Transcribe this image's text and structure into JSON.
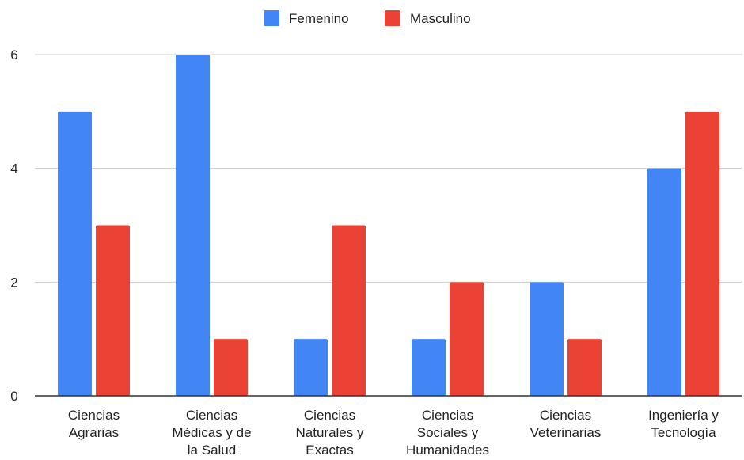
{
  "chart_data": {
    "type": "bar",
    "categories": [
      [
        "Ciencias",
        "Agrarias"
      ],
      [
        "Ciencias",
        "Médicas y de",
        "la Salud"
      ],
      [
        "Ciencias",
        "Naturales y",
        "Exactas"
      ],
      [
        "Ciencias",
        "Sociales y",
        "Humanidades"
      ],
      [
        "Ciencias",
        "Veterinarias"
      ],
      [
        "Ingeniería y",
        "Tecnología"
      ]
    ],
    "series": [
      {
        "name": "Femenino",
        "color": "#4285F4",
        "values": [
          5,
          6,
          1,
          1,
          2,
          4
        ]
      },
      {
        "name": "Masculino",
        "color": "#EA4335",
        "values": [
          3,
          1,
          3,
          2,
          1,
          5
        ]
      }
    ],
    "yticks": [
      "0",
      "2",
      "4",
      "6"
    ],
    "ylim": [
      0,
      6.5
    ],
    "grid": true,
    "legend_position": "top"
  }
}
